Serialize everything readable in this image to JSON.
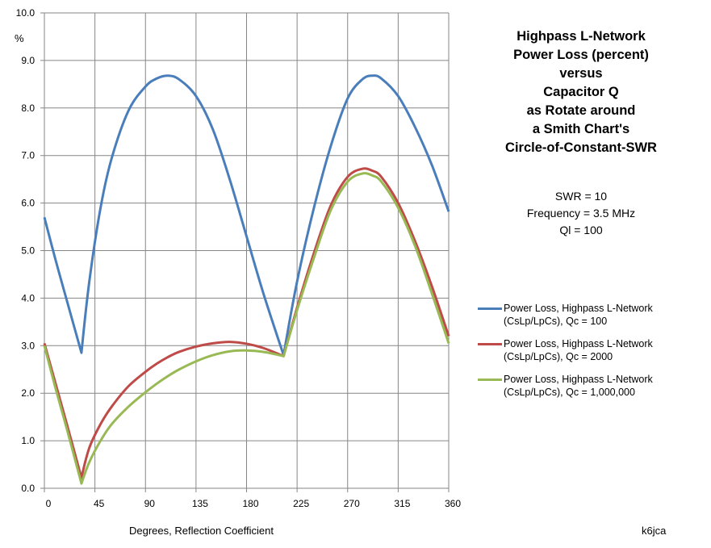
{
  "chart_data": {
    "type": "line",
    "title": "Highpass L-Network Power Loss (percent) versus Capacitor Q as Rotate around a Smith Chart's Circle-of-Constant-SWR",
    "title_lines": [
      "Highpass L-Network",
      "Power Loss (percent)",
      "versus",
      "Capacitor Q",
      "as Rotate around",
      "a Smith Chart's",
      "Circle-of-Constant-SWR"
    ],
    "subtitle_lines": [
      "SWR = 10",
      "Frequency = 3.5 MHz",
      "Ql = 100"
    ],
    "xlabel": "Degrees, Reflection Coefficient",
    "ylabel": "%",
    "xlim": [
      0,
      360
    ],
    "ylim": [
      0,
      10
    ],
    "xticks": [
      "0",
      "45",
      "90",
      "135",
      "180",
      "225",
      "270",
      "315",
      "360"
    ],
    "yticks": [
      "0.0",
      "1.0",
      "2.0",
      "3.0",
      "4.0",
      "5.0",
      "6.0",
      "7.0",
      "8.0",
      "9.0",
      "10.0"
    ],
    "grid": true,
    "legend_position": "right",
    "x": [
      0,
      10,
      20,
      33,
      40,
      50,
      60,
      75,
      90,
      100,
      110,
      120,
      135,
      150,
      165,
      180,
      195,
      213,
      225,
      240,
      255,
      270,
      283,
      292,
      300,
      315,
      330,
      345,
      360
    ],
    "series": [
      {
        "name": "Power Loss, Highpass L-Network (CsLp/LpCs), Qc = 100",
        "color": "#4a7ebb",
        "values": [
          5.7,
          4.8,
          3.95,
          2.85,
          4.35,
          5.9,
          6.95,
          7.95,
          8.45,
          8.62,
          8.68,
          8.6,
          8.25,
          7.55,
          6.5,
          5.3,
          4.1,
          2.8,
          4.35,
          5.9,
          7.2,
          8.2,
          8.6,
          8.68,
          8.62,
          8.25,
          7.6,
          6.8,
          5.82
        ]
      },
      {
        "name": "Power Loss, Highpass L-Network (CsLp/LpCs), Qc = 2000",
        "color": "#be4b48",
        "values": [
          3.05,
          2.2,
          1.35,
          0.22,
          0.85,
          1.35,
          1.72,
          2.15,
          2.45,
          2.62,
          2.76,
          2.87,
          2.98,
          3.05,
          3.08,
          3.04,
          2.95,
          2.78,
          3.8,
          4.95,
          5.95,
          6.55,
          6.72,
          6.68,
          6.55,
          6.0,
          5.2,
          4.25,
          3.2
        ]
      },
      {
        "name": "Power Loss, Highpass L-Network (CsLp/LpCs), Qc = 1,000,000",
        "color": "#98b954",
        "values": [
          3.0,
          2.1,
          1.25,
          0.1,
          0.55,
          1.0,
          1.35,
          1.72,
          2.02,
          2.2,
          2.36,
          2.5,
          2.67,
          2.8,
          2.88,
          2.9,
          2.87,
          2.78,
          3.75,
          4.85,
          5.85,
          6.45,
          6.62,
          6.58,
          6.45,
          5.9,
          5.1,
          4.1,
          3.05
        ]
      }
    ]
  },
  "legend": [
    {
      "line1": "Power Loss, Highpass L-Network",
      "line2": "(CsLp/LpCs), Qc = 100",
      "color": "#4a7ebb"
    },
    {
      "line1": "Power Loss, Highpass L-Network",
      "line2": "(CsLp/LpCs), Qc = 2000",
      "color": "#be4b48"
    },
    {
      "line1": "Power Loss, Highpass L-Network",
      "line2": "(CsLp/LpCs), Qc = 1,000,000",
      "color": "#98b954"
    }
  ],
  "credit": "k6jca"
}
